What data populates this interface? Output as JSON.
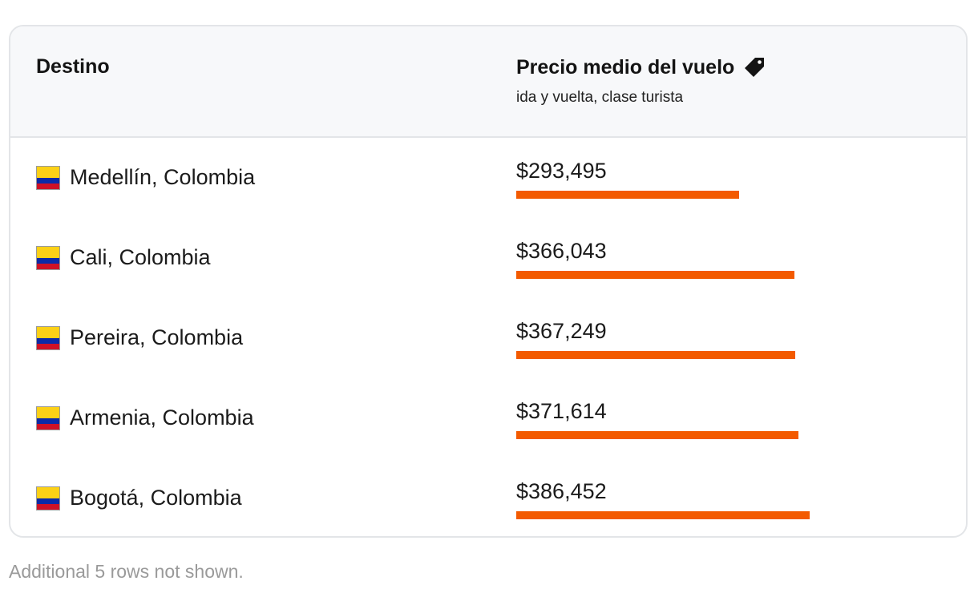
{
  "table": {
    "header": {
      "destination_label": "Destino",
      "price_label": "Precio medio del vuelo",
      "price_icon": "price-tag-icon",
      "price_sublabel": "ida y vuelta, clase turista"
    },
    "rows": [
      {
        "destination": "Medellín, Colombia",
        "flag": "colombia-flag-icon",
        "price": "$293,495",
        "price_value": 293495
      },
      {
        "destination": "Cali, Colombia",
        "flag": "colombia-flag-icon",
        "price": "$366,043",
        "price_value": 366043
      },
      {
        "destination": "Pereira, Colombia",
        "flag": "colombia-flag-icon",
        "price": "$367,249",
        "price_value": 367249
      },
      {
        "destination": "Armenia, Colombia",
        "flag": "colombia-flag-icon",
        "price": "$371,614",
        "price_value": 371614
      },
      {
        "destination": "Bogotá, Colombia",
        "flag": "colombia-flag-icon",
        "price": "$386,452",
        "price_value": 386452
      }
    ],
    "footnote": "Additional 5 rows not shown."
  },
  "colors": {
    "bar": "#f35a00",
    "header_bg": "#f7f8fa",
    "border": "#e3e5e8",
    "flag_yellow": "#fcd116",
    "flag_blue": "#0b2aa8",
    "flag_red": "#ce1126"
  }
}
